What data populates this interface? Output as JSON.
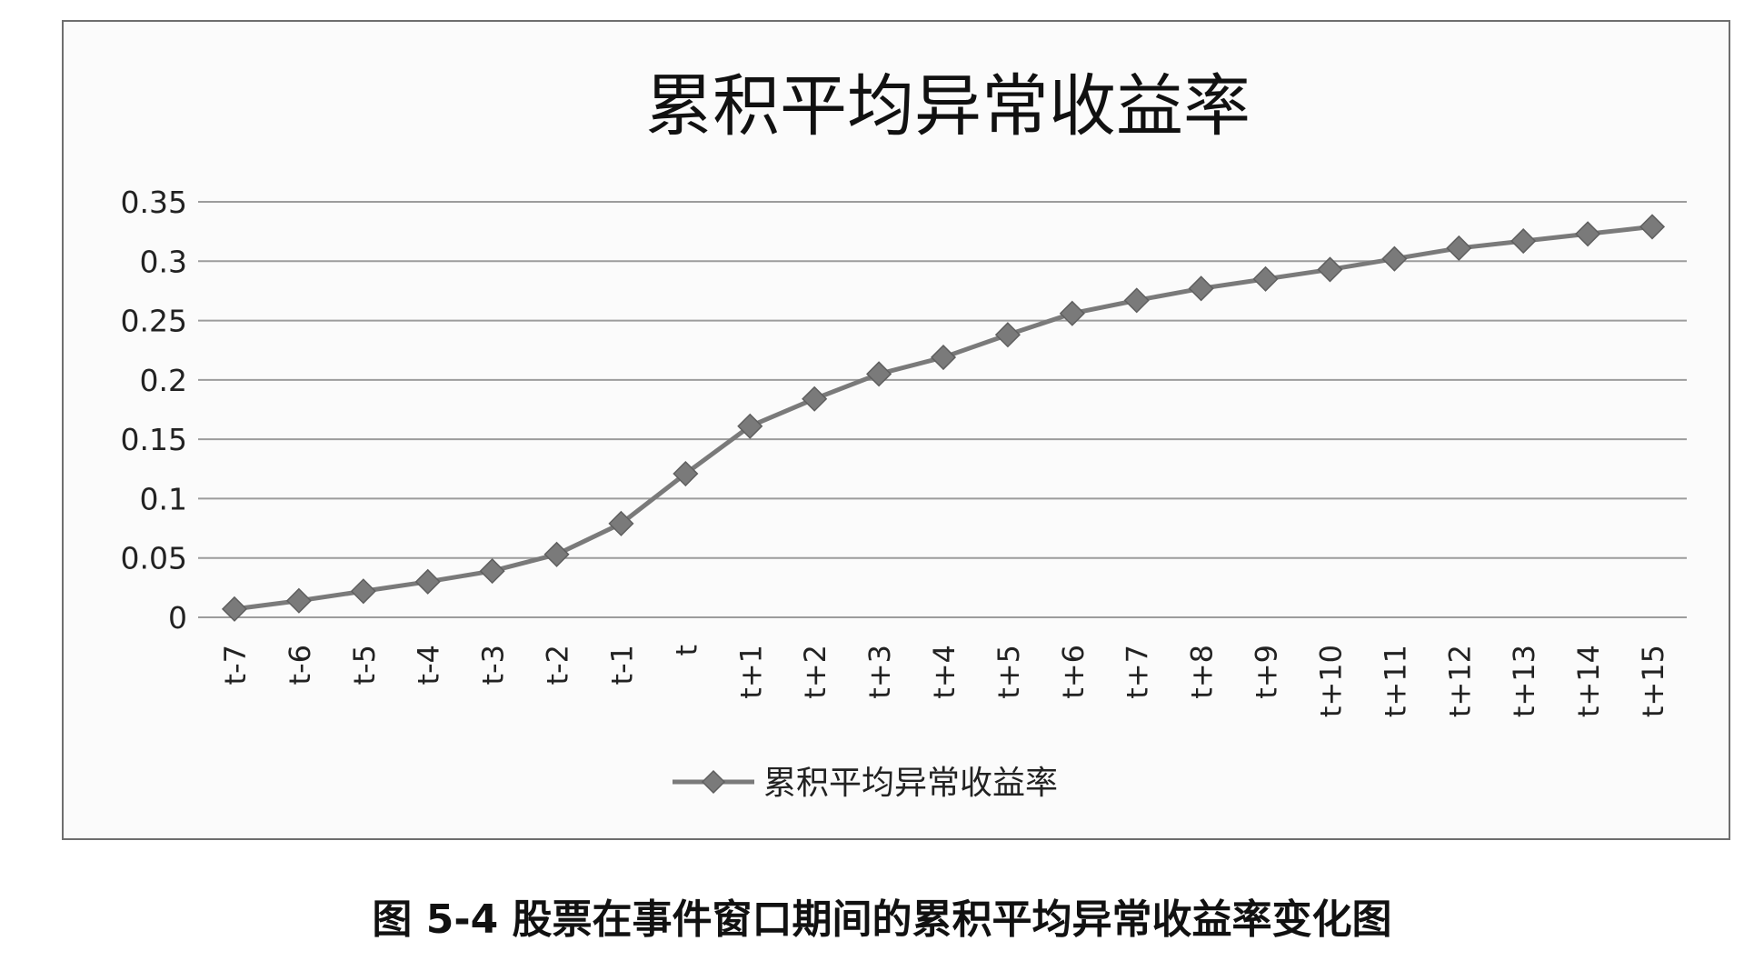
{
  "chart_data": {
    "type": "line",
    "title": "累积平均异常收益率",
    "categories": [
      "t-7",
      "t-6",
      "t-5",
      "t-4",
      "t-3",
      "t-2",
      "t-1",
      "t",
      "t+1",
      "t+2",
      "t+3",
      "t+4",
      "t+5",
      "t+6",
      "t+7",
      "t+8",
      "t+9",
      "t+10",
      "t+11",
      "t+12",
      "t+13",
      "t+14",
      "t+15"
    ],
    "series": [
      {
        "name": "累积平均异常收益率",
        "values": [
          0.007,
          0.014,
          0.022,
          0.03,
          0.039,
          0.053,
          0.079,
          0.121,
          0.161,
          0.184,
          0.205,
          0.219,
          0.238,
          0.256,
          0.267,
          0.277,
          0.285,
          0.293,
          0.302,
          0.311,
          0.317,
          0.323,
          0.329
        ]
      }
    ],
    "yticks": [
      "0",
      "0.05",
      "0.1",
      "0.15",
      "0.2",
      "0.25",
      "0.3",
      "0.35"
    ],
    "ylim": [
      0,
      0.35
    ],
    "grid": true,
    "legend": "bottom",
    "color": "#7a7a7a"
  },
  "caption": "图 5-4 股票在事件窗口期间的累积平均异常收益率变化图"
}
